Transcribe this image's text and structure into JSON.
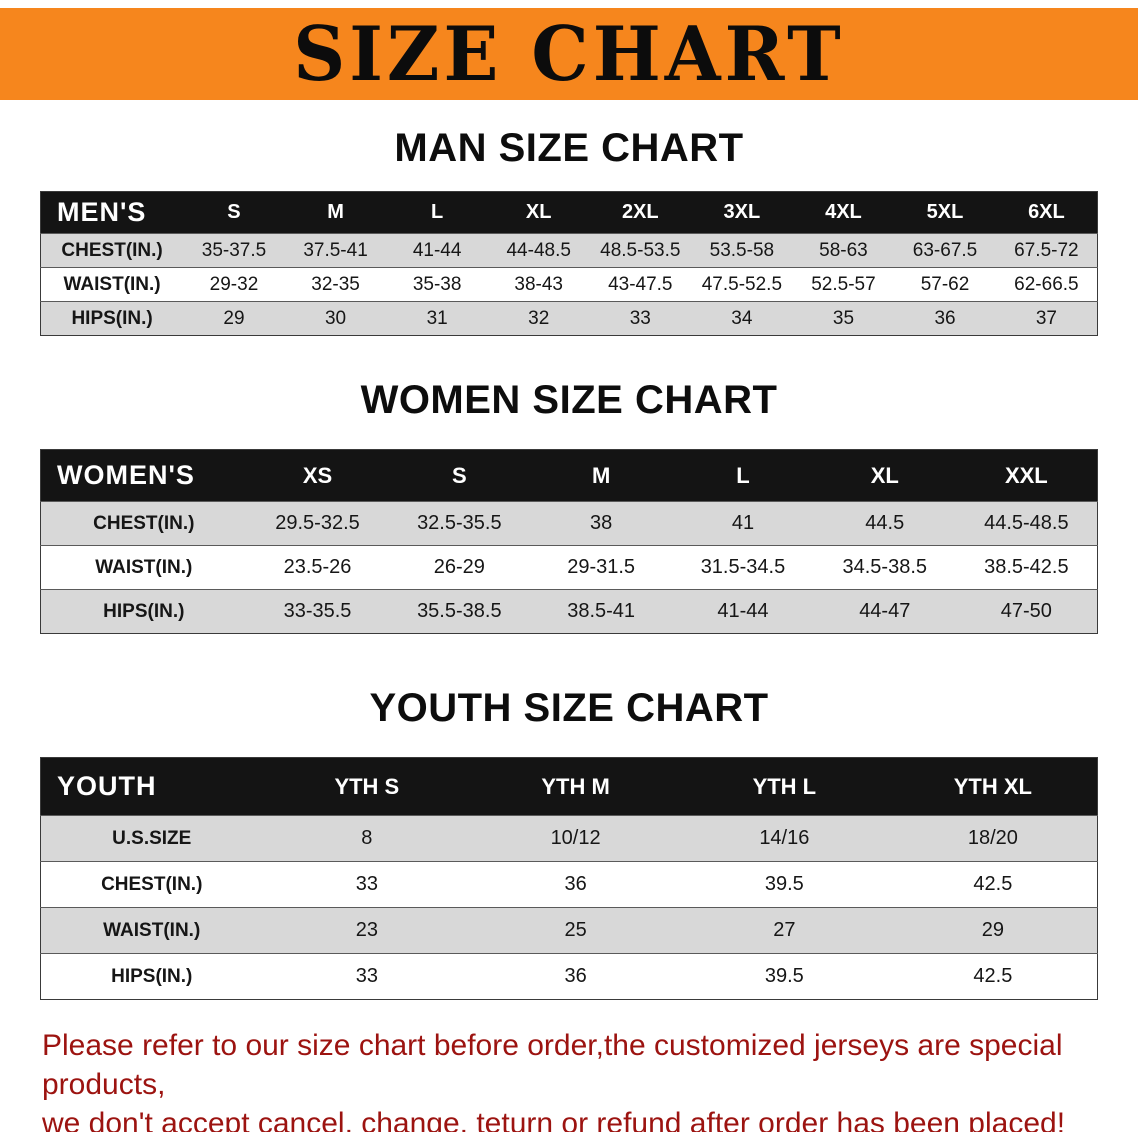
{
  "banner": {
    "title": "SIZE CHART",
    "bg_color": "#F6861D"
  },
  "sections": [
    {
      "id": "men",
      "title": "MAN SIZE CHART",
      "header": [
        "MEN'S",
        "S",
        "M",
        "L",
        "XL",
        "2XL",
        "3XL",
        "4XL",
        "5XL",
        "6XL"
      ],
      "rows": [
        [
          "CHEST(IN.)",
          "35-37.5",
          "37.5-41",
          "41-44",
          "44-48.5",
          "48.5-53.5",
          "53.5-58",
          "58-63",
          "63-67.5",
          "67.5-72"
        ],
        [
          "WAIST(IN.)",
          "29-32",
          "32-35",
          "35-38",
          "38-43",
          "43-47.5",
          "47.5-52.5",
          "52.5-57",
          "57-62",
          "62-66.5"
        ],
        [
          "HIPS(IN.)",
          "29",
          "30",
          "31",
          "32",
          "33",
          "34",
          "35",
          "36",
          "37"
        ]
      ]
    },
    {
      "id": "women",
      "title": "WOMEN SIZE CHART",
      "header": [
        "WOMEN'S",
        "XS",
        "S",
        "M",
        "L",
        "XL",
        "XXL"
      ],
      "rows": [
        [
          "CHEST(IN.)",
          "29.5-32.5",
          "32.5-35.5",
          "38",
          "41",
          "44.5",
          "44.5-48.5"
        ],
        [
          "WAIST(IN.)",
          "23.5-26",
          "26-29",
          "29-31.5",
          "31.5-34.5",
          "34.5-38.5",
          "38.5-42.5"
        ],
        [
          "HIPS(IN.)",
          "33-35.5",
          "35.5-38.5",
          "38.5-41",
          "41-44",
          "44-47",
          "47-50"
        ]
      ]
    },
    {
      "id": "youth",
      "title": "YOUTH SIZE CHART",
      "header": [
        "YOUTH",
        "YTH S",
        "YTH M",
        "YTH L",
        "YTH XL"
      ],
      "rows": [
        [
          "U.S.SIZE",
          "8",
          "10/12",
          "14/16",
          "18/20"
        ],
        [
          "CHEST(IN.)",
          "33",
          "36",
          "39.5",
          "42.5"
        ],
        [
          "WAIST(IN.)",
          "23",
          "25",
          "27",
          "29"
        ],
        [
          "HIPS(IN.)",
          "33",
          "36",
          "39.5",
          "42.5"
        ]
      ]
    }
  ],
  "footer": {
    "color": "#9C1310",
    "line1": "Please refer to our size chart before order,the customized jerseys are special products,",
    "line2": "we don't accept cancel, change, teturn or refund after order has been placed!"
  }
}
